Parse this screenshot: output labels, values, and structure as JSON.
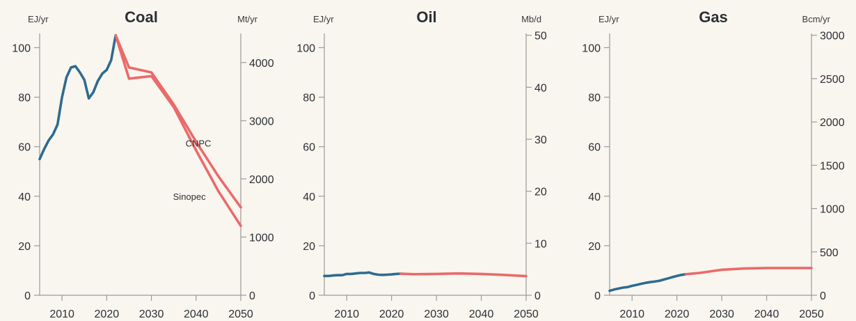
{
  "colors": {
    "historical": "#2e6b8f",
    "projection": "#ea6a6a",
    "background": "#f8f6ee",
    "axis": "#9a9a9a",
    "text": "#2b2f36"
  },
  "chart_data": [
    {
      "type": "line",
      "title": "Coal",
      "left_unit": "EJ/yr",
      "right_unit": "Mt/yr",
      "xlim": [
        2005,
        2050
      ],
      "ylim": [
        0,
        108
      ],
      "x_ticks": [
        2010,
        2020,
        2030,
        2040,
        2050
      ],
      "y_ticks": [
        0,
        20,
        40,
        60,
        80,
        100
      ],
      "right_ticks": [
        {
          "label": "0",
          "ej": 0
        },
        {
          "label": "1000",
          "ej": 23.5
        },
        {
          "label": "2000",
          "ej": 47
        },
        {
          "label": "3000",
          "ej": 70.5
        },
        {
          "label": "4000",
          "ej": 94
        }
      ],
      "series": [
        {
          "role": "historical",
          "x": [
            2005,
            2006,
            2007,
            2008,
            2009,
            2010,
            2011,
            2012,
            2013,
            2014,
            2015,
            2016,
            2017,
            2018,
            2019,
            2020,
            2021,
            2022
          ],
          "y": [
            55,
            59,
            62.5,
            65,
            69,
            80,
            88,
            92,
            92.5,
            90,
            87,
            79.5,
            82,
            86.5,
            89.5,
            91,
            95,
            105
          ]
        },
        {
          "role": "projection",
          "label": "CNPC",
          "x": [
            2022,
            2025,
            2030,
            2035,
            2040,
            2045,
            2050
          ],
          "y": [
            105,
            92,
            90,
            77,
            62,
            48,
            35.5
          ]
        },
        {
          "role": "projection",
          "label": "Sinopec",
          "x": [
            2022,
            2025,
            2030,
            2035,
            2040,
            2045,
            2050
          ],
          "y": [
            105,
            87.5,
            88.5,
            76,
            58.5,
            42,
            28
          ]
        }
      ],
      "annotations": [
        {
          "text": "CNPC",
          "x": 2040.5,
          "y": 61.5
        },
        {
          "text": "Sinopec",
          "x": 2038.5,
          "y": 40
        }
      ]
    },
    {
      "type": "line",
      "title": "Oil",
      "left_unit": "EJ/yr",
      "right_unit": "Mb/d",
      "xlim": [
        2005,
        2050
      ],
      "ylim": [
        0,
        108
      ],
      "x_ticks": [
        2010,
        2020,
        2030,
        2040,
        2050
      ],
      "y_ticks": [
        0,
        20,
        40,
        60,
        80,
        100
      ],
      "right_ticks": [
        {
          "label": "0",
          "ej": 0
        },
        {
          "label": "10",
          "ej": 21
        },
        {
          "label": "20",
          "ej": 42
        },
        {
          "label": "30",
          "ej": 63
        },
        {
          "label": "40",
          "ej": 84
        },
        {
          "label": "50",
          "ej": 105
        }
      ],
      "series": [
        {
          "role": "historical",
          "x": [
            2005,
            2006,
            2007,
            2008,
            2009,
            2010,
            2011,
            2012,
            2013,
            2014,
            2015,
            2016,
            2017,
            2018,
            2019,
            2020,
            2021,
            2022
          ],
          "y": [
            7.8,
            7.8,
            8.0,
            8.1,
            8.1,
            8.6,
            8.6,
            8.8,
            9.0,
            9.0,
            9.2,
            8.6,
            8.3,
            8.2,
            8.3,
            8.4,
            8.6,
            8.7
          ]
        },
        {
          "role": "projection",
          "x": [
            2022,
            2025,
            2030,
            2035,
            2040,
            2045,
            2050
          ],
          "y": [
            8.7,
            8.5,
            8.6,
            8.8,
            8.6,
            8.2,
            7.7
          ]
        }
      ],
      "annotations": []
    },
    {
      "type": "line",
      "title": "Gas",
      "left_unit": "EJ/yr",
      "right_unit": "Bcm/yr",
      "xlim": [
        2005,
        2050
      ],
      "ylim": [
        0,
        108
      ],
      "x_ticks": [
        2010,
        2020,
        2030,
        2040,
        2050
      ],
      "y_ticks": [
        0,
        20,
        40,
        60,
        80,
        100
      ],
      "right_ticks": [
        {
          "label": "0",
          "ej": 0
        },
        {
          "label": "500",
          "ej": 17.5
        },
        {
          "label": "1000",
          "ej": 35
        },
        {
          "label": "1500",
          "ej": 52.5
        },
        {
          "label": "2000",
          "ej": 70
        },
        {
          "label": "2500",
          "ej": 87.5
        },
        {
          "label": "3000",
          "ej": 105
        }
      ],
      "series": [
        {
          "role": "historical",
          "x": [
            2005,
            2006,
            2007,
            2008,
            2009,
            2010,
            2011,
            2012,
            2013,
            2014,
            2015,
            2016,
            2017,
            2018,
            2019,
            2020,
            2021,
            2022
          ],
          "y": [
            1.8,
            2.3,
            2.7,
            3.1,
            3.3,
            3.8,
            4.2,
            4.6,
            5.0,
            5.3,
            5.5,
            5.8,
            6.3,
            6.8,
            7.3,
            7.8,
            8.2,
            8.5
          ]
        },
        {
          "role": "projection",
          "x": [
            2022,
            2025,
            2030,
            2035,
            2040,
            2045,
            2050
          ],
          "y": [
            8.5,
            9.0,
            10.3,
            10.8,
            11.0,
            11.0,
            11.0
          ]
        }
      ],
      "annotations": []
    }
  ]
}
